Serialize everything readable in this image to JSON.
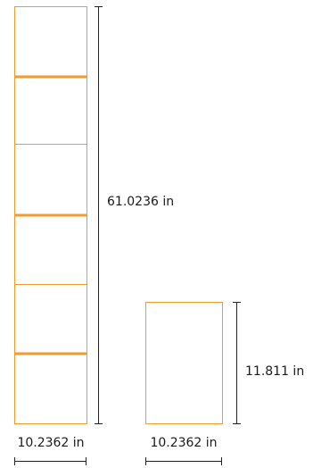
{
  "colors": {
    "accent": "#F39A2E",
    "dimension_line": "#222222"
  },
  "stack": {
    "height_label": "61.0236 in",
    "width_label": "10.2362 in",
    "module_count": 6
  },
  "single_unit": {
    "height_label": "11.811 in",
    "width_label": "10.2362 in"
  }
}
